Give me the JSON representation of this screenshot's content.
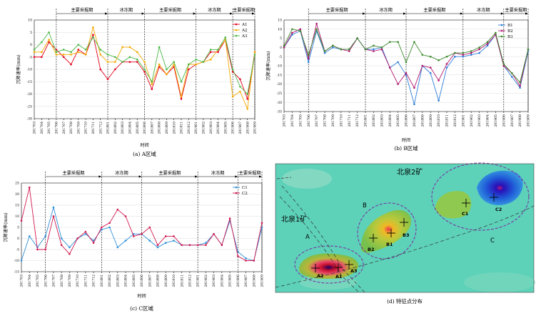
{
  "chart_data": [
    {
      "type": "line",
      "title": "(a) A区域",
      "xlabel": "时间",
      "ylabel": "沉降速率(mm)",
      "ylim": [
        -30,
        10
      ],
      "yticks": [
        10,
        5,
        0,
        -5,
        -10,
        -15,
        -20,
        -25,
        -30
      ],
      "categories": [
        "201703",
        "201704",
        "201705",
        "201706",
        "201707",
        "201708",
        "201709",
        "201710",
        "201711",
        "201712",
        "201801",
        "201802",
        "201803",
        "201804",
        "201805",
        "201806",
        "201807",
        "201808",
        "201809",
        "201810",
        "201811",
        "201812",
        "201901",
        "201902",
        "201903",
        "201904",
        "201905",
        "201906",
        "201907",
        "201908",
        "201909"
      ],
      "periods": [
        {
          "label": "主要采掘期",
          "start": 3,
          "end": 10
        },
        {
          "label": "冰冻期",
          "start": 10,
          "end": 15
        },
        {
          "label": "主要采掘期",
          "start": 15,
          "end": 22
        },
        {
          "label": "冰冻期",
          "start": 22,
          "end": 27
        },
        {
          "label": "主要采掘期",
          "start": 27,
          "end": 30
        }
      ],
      "series": [
        {
          "name": "A1",
          "color": "#e3001b",
          "values": [
            -5,
            -5,
            1,
            -2,
            -5,
            -8,
            -2,
            -4,
            4,
            -10,
            -14,
            -10,
            -7,
            -7,
            -7,
            -11,
            -18,
            -9,
            -12,
            -9,
            -22,
            -10,
            -8,
            -7,
            -3,
            -3,
            2,
            -11,
            -14,
            -22,
            -3
          ]
        },
        {
          "name": "A2",
          "color": "#f2a900",
          "values": [
            -3,
            -3,
            2,
            -4,
            -4,
            -4,
            -3,
            -4,
            7,
            -4,
            -7,
            -7,
            -1,
            -1,
            -3,
            -7,
            -16,
            -8,
            -12,
            -8,
            -21,
            -8,
            -8,
            -7,
            -6,
            -2,
            2,
            -21,
            -19,
            -26,
            -3
          ]
        },
        {
          "name": "A3",
          "color": "#4cb848",
          "values": [
            -2,
            1,
            5,
            -3,
            -2,
            -3,
            0,
            -2,
            3,
            -2,
            -4,
            -5,
            -7,
            -5,
            -6,
            -10,
            -15,
            -1,
            -10,
            -7,
            -15,
            -8,
            -6,
            -7,
            -2,
            -2,
            3,
            -10,
            -17,
            -20,
            -4
          ]
        }
      ]
    },
    {
      "type": "line",
      "title": "(b) B区域",
      "xlabel": "时间",
      "ylabel": "沉降速率(mm)",
      "ylim": [
        -35,
        15
      ],
      "yticks": [
        15,
        10,
        5,
        0,
        -5,
        -10,
        -15,
        -20,
        -25,
        -30,
        -35
      ],
      "categories": [
        "201703",
        "201704",
        "201705",
        "201706",
        "201707",
        "201708",
        "201709",
        "201710",
        "201711",
        "201712",
        "201801",
        "201802",
        "201803",
        "201804",
        "201805",
        "201806",
        "201807",
        "201808",
        "201809",
        "201810",
        "201811",
        "201812",
        "201901",
        "201902",
        "201903",
        "201904",
        "201905",
        "201906",
        "201907",
        "201908",
        "201909"
      ],
      "periods": [
        {
          "label": "主要采掘期",
          "start": 3,
          "end": 10
        },
        {
          "label": "冰冻期",
          "start": 10,
          "end": 15
        },
        {
          "label": "主要采掘期",
          "start": 15,
          "end": 22
        },
        {
          "label": "冰冻期",
          "start": 22,
          "end": 27
        },
        {
          "label": "主要采掘期",
          "start": 27,
          "end": 30
        }
      ],
      "series": [
        {
          "name": "B1",
          "color": "#2e7dd7",
          "values": [
            0,
            7,
            9,
            -8,
            9,
            -3,
            0,
            -1,
            -1,
            5,
            -1,
            -1,
            0,
            -11,
            -8,
            -15,
            -31,
            -10,
            -14,
            -29,
            -11,
            -5,
            -5,
            -4,
            -3,
            1,
            7,
            -10,
            -16,
            -22,
            -2
          ]
        },
        {
          "name": "B2",
          "color": "#b0186f",
          "values": [
            0,
            8,
            10,
            -6,
            13,
            -2,
            1,
            -1,
            -2,
            5,
            -1,
            -2,
            -1,
            -11,
            -20,
            -14,
            -22,
            -10,
            -11,
            -18,
            -9,
            -3,
            -4,
            -3,
            -1,
            2,
            7,
            -10,
            -14,
            -21,
            -1
          ]
        },
        {
          "name": "B3",
          "color": "#3d8a2e",
          "values": [
            1,
            10,
            9,
            -4,
            10,
            -2,
            1,
            -1,
            -1,
            5,
            -1,
            1,
            0,
            3,
            3,
            -8,
            3,
            -4,
            -5,
            -7,
            -5,
            -3,
            -3,
            -2,
            0,
            3,
            8,
            -9,
            -14,
            -19,
            -1
          ]
        }
      ]
    },
    {
      "type": "line",
      "title": "(c) C区域",
      "xlabel": "时间",
      "ylabel": "沉降速率(mm)",
      "ylim": [
        -15,
        25
      ],
      "yticks": [
        25,
        20,
        15,
        10,
        5,
        0,
        -5,
        -10,
        -15
      ],
      "categories": [
        "201703",
        "201704",
        "201705",
        "201706",
        "201707",
        "201708",
        "201709",
        "201710",
        "201711",
        "201712",
        "201801",
        "201802",
        "201803",
        "201804",
        "201805",
        "201806",
        "201807",
        "201808",
        "201809",
        "201810",
        "201811",
        "201812",
        "201901",
        "201902",
        "201903",
        "201904",
        "201905",
        "201906",
        "201907",
        "201908",
        "201909"
      ],
      "periods": [
        {
          "label": "主要采掘期",
          "start": 3,
          "end": 10
        },
        {
          "label": "冰冻期",
          "start": 10,
          "end": 15
        },
        {
          "label": "主要采掘期",
          "start": 15,
          "end": 22
        },
        {
          "label": "冰冻期",
          "start": 22,
          "end": 27
        },
        {
          "label": "主要采掘期",
          "start": 27,
          "end": 30
        }
      ],
      "series": [
        {
          "name": "C1",
          "color": "#2e8fd6",
          "values": [
            -10,
            1,
            -4,
            1,
            14,
            0,
            -4,
            0,
            2,
            -1,
            4,
            5,
            -4,
            -1,
            2,
            2,
            -1,
            -4,
            -2,
            -1,
            -3,
            -3,
            -3,
            -2,
            2,
            -3,
            8,
            -6,
            -9,
            -10,
            5
          ]
        },
        {
          "name": "C2",
          "color": "#d1184f",
          "values": [
            8,
            23,
            -5,
            -5,
            10,
            -3,
            -7,
            0,
            3,
            -2,
            5,
            7,
            13,
            10,
            1,
            2,
            5,
            -3,
            1,
            1,
            -3,
            -3,
            -3,
            -3,
            2,
            -3,
            9,
            -8,
            -10,
            -10,
            7
          ]
        }
      ]
    }
  ],
  "map": {
    "caption": "(d) 特征点分布",
    "mine1": "北泉1矿",
    "mine2": "北泉2矿",
    "regions": [
      "A",
      "B",
      "C"
    ],
    "points": [
      "A1",
      "A2",
      "A3",
      "B1",
      "B2",
      "B3",
      "C1",
      "C2"
    ]
  }
}
